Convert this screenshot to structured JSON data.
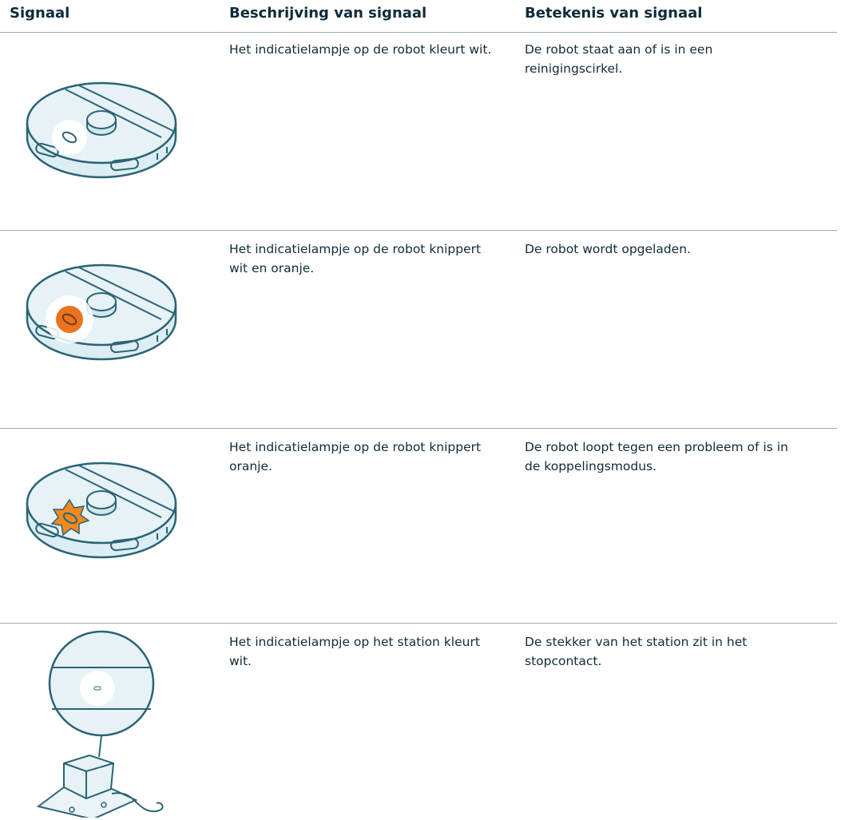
{
  "header": {
    "columns": [
      "Signaal",
      "Beschrijving van signaal",
      "Betekenis van signaal"
    ]
  },
  "rows": [
    {
      "description": "Het indicatielampje op de robot kleurt wit.",
      "meaning": "De robot staat aan of is in een reinigingscirkel."
    },
    {
      "description": "Het indicatielampje op de robot knippert wit en oranje.",
      "meaning": "De robot wordt opgeladen."
    },
    {
      "description": "Het indicatielampje op de robot knippert oranje.",
      "meaning": "De robot loopt tegen een probleem of is in de koppelingsmodus."
    },
    {
      "description": "Het indicatielampje op het station kleurt wit.",
      "meaning": "De stekker van het station zit in het stopcontact."
    }
  ]
}
